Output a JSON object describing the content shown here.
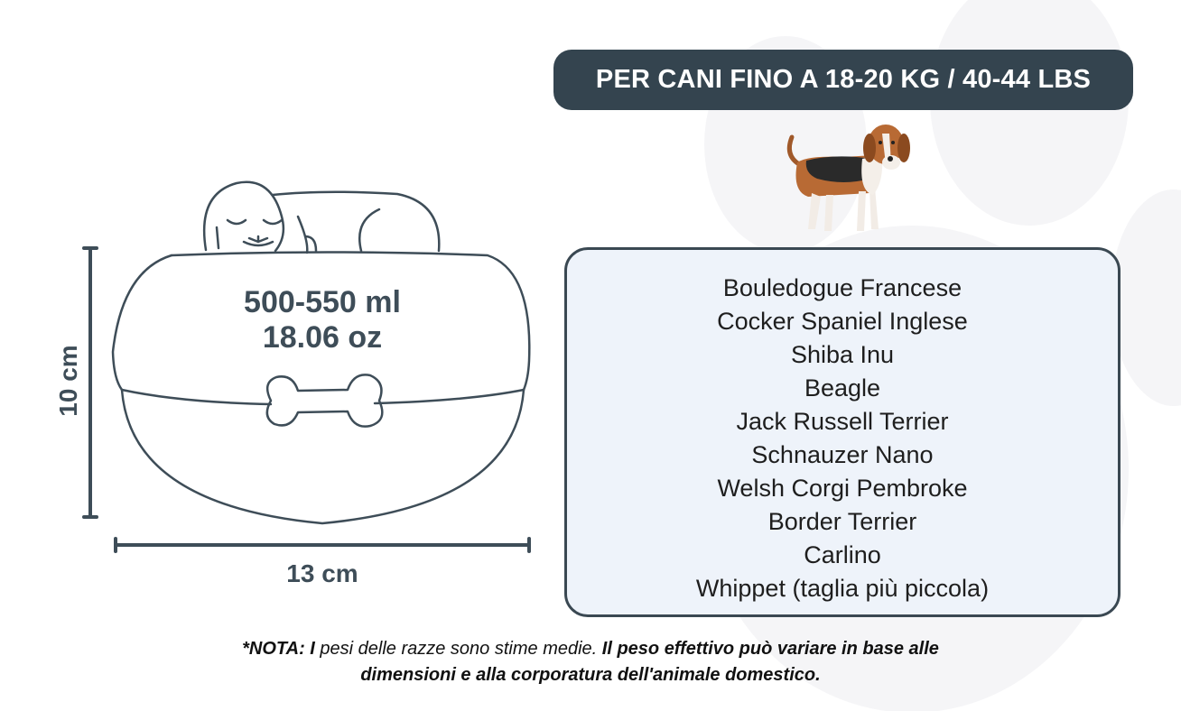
{
  "header": {
    "weight_badge": "PER CANI FINO A 18-20 KG / 40-44 LBS"
  },
  "illustration": {
    "icons": [
      "sleeping-dog-bowl",
      "bone-icon",
      "beagle-dog-icon",
      "paw-print-background"
    ],
    "capacity_ml": "500-550 ml",
    "capacity_oz": "18.06 oz",
    "height": "10 cm",
    "width": "13 cm"
  },
  "breeds": [
    "Bouledogue Francese",
    "Cocker Spaniel Inglese",
    "Shiba Inu",
    "Beagle",
    "Jack Russell Terrier",
    "Schnauzer Nano",
    "Welsh Corgi Pembroke",
    "Border Terrier",
    "Carlino",
    "Whippet (taglia più piccola)"
  ],
  "note": {
    "prefix_bold": "*NOTA: I",
    "middle": " pesi delle razze sono stime medie. ",
    "suffix_bold": "Il peso effettivo può variare in base alle dimensioni e alla corporatura dell'animale domestico."
  },
  "colors": {
    "primary": "#34444f",
    "panel": "#eef3fa",
    "background_paw": "#f4f4f6"
  }
}
